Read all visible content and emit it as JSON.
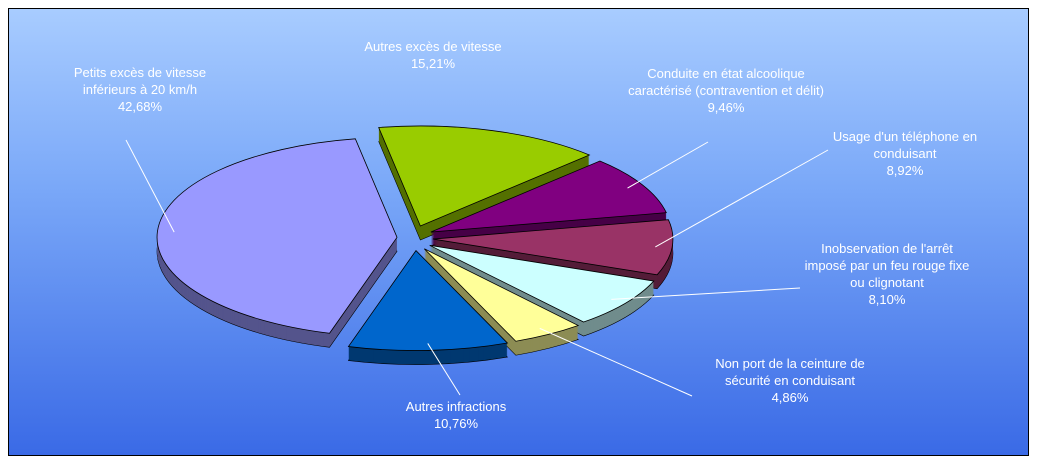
{
  "chart_data": {
    "type": "pie",
    "categories": [
      "Autres excès de vitesse",
      "Conduite en état alcoolique caractérisé (contravention et délit)",
      "Usage d'un téléphone en conduisant",
      "Inobservation de l'arrêt imposé par un feu rouge fixe ou clignotant",
      "Non port de la ceinture de sécurité en conduisant",
      "Autres infractions",
      "Petits excès de vitesse inférieurs à 20 km/h"
    ],
    "values": [
      15.21,
      9.46,
      8.92,
      8.1,
      4.86,
      10.76,
      42.68
    ],
    "value_labels": [
      "15,21%",
      "9,46%",
      "8,92%",
      "8,10%",
      "4,86%",
      "10,76%",
      "42,68%"
    ],
    "colors": [
      "#99cc00",
      "#800080",
      "#993366",
      "#ccffff",
      "#ffff99",
      "#0066cc",
      "#9999ff"
    ]
  }
}
